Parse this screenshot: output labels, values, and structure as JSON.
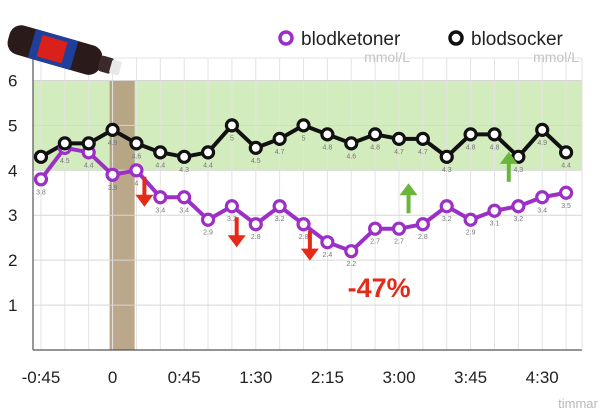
{
  "chart_data": {
    "type": "line",
    "x": [
      -45,
      -37.5,
      -30,
      -22.5,
      -15,
      -7.5,
      0,
      7.5,
      15,
      22.5,
      30,
      37.5,
      45,
      52.5,
      60,
      67.5,
      75,
      82.5,
      90,
      97.5,
      105,
      112.5,
      120,
      127.5,
      135,
      142.5,
      150,
      157.5,
      165,
      172.5,
      180,
      187.5,
      195,
      202.5,
      210,
      217.5,
      225,
      232.5,
      240,
      247.5,
      255,
      262.5,
      270,
      277.5,
      285
    ],
    "series": [
      {
        "name": "blodketoner",
        "unit": "mmol/L",
        "color": "#9b2fc6",
        "points": [
          {
            "x": -45,
            "y": 3.8,
            "label": "3.8"
          },
          {
            "x": -30,
            "y": 4.5,
            "label": "4.5"
          },
          {
            "x": -15,
            "y": 4.4,
            "label": "4.4"
          },
          {
            "x": 0,
            "y": 3.9,
            "label": "3.9"
          },
          {
            "x": 15,
            "y": 4.0,
            "label": "4"
          },
          {
            "x": 30,
            "y": 3.4,
            "label": "3.4"
          },
          {
            "x": 45,
            "y": 3.4,
            "label": "3.4"
          },
          {
            "x": 60,
            "y": 2.9,
            "label": "2.9"
          },
          {
            "x": 75,
            "y": 3.2,
            "label": "3.2"
          },
          {
            "x": 90,
            "y": 2.8,
            "label": "2.8"
          },
          {
            "x": 105,
            "y": 3.2,
            "label": "3.2"
          },
          {
            "x": 120,
            "y": 2.8,
            "label": "2.8"
          },
          {
            "x": 135,
            "y": 2.4,
            "label": "2.4"
          },
          {
            "x": 150,
            "y": 2.2,
            "label": "2.2"
          },
          {
            "x": 165,
            "y": 2.7,
            "label": "2.7"
          },
          {
            "x": 180,
            "y": 2.7,
            "label": "2.7"
          },
          {
            "x": 195,
            "y": 2.8,
            "label": "2.8"
          },
          {
            "x": 210,
            "y": 3.2,
            "label": "3.2"
          },
          {
            "x": 225,
            "y": 2.9,
            "label": "2.9"
          },
          {
            "x": 240,
            "y": 3.1,
            "label": "3.1"
          },
          {
            "x": 255,
            "y": 3.2,
            "label": "3.2"
          },
          {
            "x": 270,
            "y": 3.4,
            "label": "3.4"
          },
          {
            "x": 285,
            "y": 3.5,
            "label": "3.5"
          }
        ]
      },
      {
        "name": "blodsocker",
        "unit": "mmol/L",
        "color": "#111111",
        "points": [
          {
            "x": -45,
            "y": 4.3,
            "label": ""
          },
          {
            "x": -30,
            "y": 4.6,
            "label": ""
          },
          {
            "x": -15,
            "y": 4.6,
            "label": ""
          },
          {
            "x": 0,
            "y": 4.9,
            "label": "4.9"
          },
          {
            "x": 15,
            "y": 4.6,
            "label": "4.6"
          },
          {
            "x": 30,
            "y": 4.4,
            "label": "4.4"
          },
          {
            "x": 45,
            "y": 4.3,
            "label": "4.3"
          },
          {
            "x": 60,
            "y": 4.4,
            "label": "4.4"
          },
          {
            "x": 75,
            "y": 5.0,
            "label": "5"
          },
          {
            "x": 90,
            "y": 4.5,
            "label": "4.5"
          },
          {
            "x": 105,
            "y": 4.7,
            "label": "4.7"
          },
          {
            "x": 120,
            "y": 5.0,
            "label": "5"
          },
          {
            "x": 135,
            "y": 4.8,
            "label": "4.8"
          },
          {
            "x": 150,
            "y": 4.6,
            "label": "4.6"
          },
          {
            "x": 165,
            "y": 4.8,
            "label": "4.8"
          },
          {
            "x": 180,
            "y": 4.7,
            "label": "4.7"
          },
          {
            "x": 195,
            "y": 4.7,
            "label": "4.7"
          },
          {
            "x": 210,
            "y": 4.3,
            "label": "4.3"
          },
          {
            "x": 225,
            "y": 4.8,
            "label": "4.8"
          },
          {
            "x": 240,
            "y": 4.8,
            "label": "4.8"
          },
          {
            "x": 255,
            "y": 4.3,
            "label": "4.3"
          },
          {
            "x": 270,
            "y": 4.9,
            "label": "4.9"
          },
          {
            "x": 285,
            "y": 4.4,
            "label": "4.4"
          }
        ]
      }
    ],
    "y_ticks": [
      1,
      2,
      3,
      4,
      5,
      6
    ],
    "x_ticks": [
      {
        "value": -45,
        "label": "-0:45"
      },
      {
        "value": 0,
        "label": "0"
      },
      {
        "value": 45,
        "label": "0:45"
      },
      {
        "value": 90,
        "label": "1:30"
      },
      {
        "value": 135,
        "label": "2:15"
      },
      {
        "value": 180,
        "label": "3:00"
      },
      {
        "value": 225,
        "label": "3:45"
      },
      {
        "value": 270,
        "label": "4:30"
      }
    ],
    "xlim": [
      -50,
      295
    ],
    "ylim": [
      0,
      6.5
    ],
    "xlabel": "timmar",
    "ylabel": "",
    "target_band": {
      "from": 4,
      "to": 6,
      "color": "#d3ecbd"
    },
    "marker_band": {
      "from": 0,
      "to": 12,
      "color": "#b49f7d"
    },
    "annotation": {
      "text": "-47%",
      "x": 160,
      "y": 1.4
    },
    "down_arrows": [
      {
        "x": 20,
        "y": 3.5
      },
      {
        "x": 78,
        "y": 2.6
      },
      {
        "x": 124,
        "y": 2.3
      }
    ],
    "up_arrows": [
      {
        "x": 186,
        "y": 3.4
      },
      {
        "x": 249,
        "y": 4.1
      }
    ],
    "arrow_colors": {
      "down": "#e52a18",
      "up": "#6ab63c"
    }
  }
}
